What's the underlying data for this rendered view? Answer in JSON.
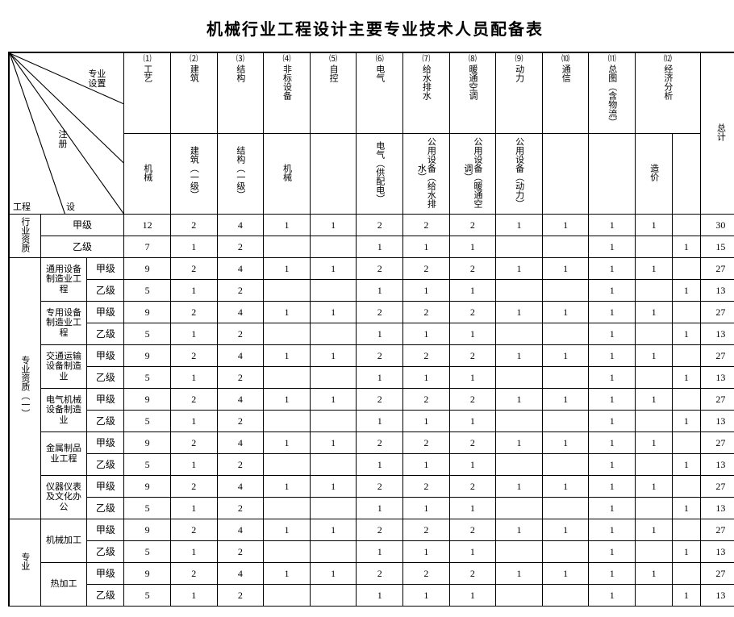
{
  "title": "机械行业工程设计主要专业技术人员配备表",
  "diag": {
    "zhuanye_shezhi": "专业\n设置",
    "zhuce": "注\n册",
    "gongcheng": "工程",
    "she": "设"
  },
  "cols": [
    {
      "num": "⑴",
      "name": "工艺",
      "sub": "机械"
    },
    {
      "num": "⑵",
      "name": "建筑",
      "sub": "建筑（一级）"
    },
    {
      "num": "⑶",
      "name": "结构",
      "sub": "结构（一级）"
    },
    {
      "num": "⑷",
      "name": "非标设备",
      "sub": "机械"
    },
    {
      "num": "⑸",
      "name": "自控",
      "sub": ""
    },
    {
      "num": "⑹",
      "name": "电气",
      "sub": "电气（供配电）"
    },
    {
      "num": "⑺",
      "name": "给水排水",
      "sub": "公用设备（给水排水）"
    },
    {
      "num": "⑻",
      "name": "暖通空调",
      "sub": "公用设备（暖通空调）"
    },
    {
      "num": "⑼",
      "name": "动力",
      "sub": "公用设备（动力）"
    },
    {
      "num": "⑽",
      "name": "通信",
      "sub": ""
    },
    {
      "num": "⑾",
      "name": "总图（含物流）",
      "sub": ""
    },
    {
      "num": "⑿",
      "name": "经济分析",
      "sub": "造价",
      "colspan": 2
    }
  ],
  "total_label": "总计",
  "groups": [
    {
      "name": "行业资质",
      "rows": [
        {
          "cat": "",
          "catspan": 2,
          "lvl": "甲级",
          "v": [
            "12",
            "2",
            "4",
            "1",
            "1",
            "2",
            "2",
            "2",
            "1",
            "1",
            "1",
            "1",
            ""
          ],
          "t": "30"
        },
        {
          "cat": "",
          "lvl": "乙级",
          "v": [
            "7",
            "1",
            "2",
            "",
            "",
            "1",
            "1",
            "1",
            "",
            "",
            "1",
            "",
            "1"
          ],
          "t": "15"
        }
      ]
    },
    {
      "name": "专业资质（一）",
      "rows": [
        {
          "cat": "通用设备制造业工程",
          "lvl": "甲级",
          "v": [
            "9",
            "2",
            "4",
            "1",
            "1",
            "2",
            "2",
            "2",
            "1",
            "1",
            "1",
            "1",
            ""
          ],
          "t": "27"
        },
        {
          "cat": "",
          "lvl": "乙级",
          "v": [
            "5",
            "1",
            "2",
            "",
            "",
            "1",
            "1",
            "1",
            "",
            "",
            "1",
            "",
            "1"
          ],
          "t": "13"
        },
        {
          "cat": "专用设备制造业工程",
          "lvl": "甲级",
          "v": [
            "9",
            "2",
            "4",
            "1",
            "1",
            "2",
            "2",
            "2",
            "1",
            "1",
            "1",
            "1",
            ""
          ],
          "t": "27"
        },
        {
          "cat": "",
          "lvl": "乙级",
          "v": [
            "5",
            "1",
            "2",
            "",
            "",
            "1",
            "1",
            "1",
            "",
            "",
            "1",
            "",
            "1"
          ],
          "t": "13"
        },
        {
          "cat": "交通运输设备制造业",
          "lvl": "甲级",
          "v": [
            "9",
            "2",
            "4",
            "1",
            "1",
            "2",
            "2",
            "2",
            "1",
            "1",
            "1",
            "1",
            ""
          ],
          "t": "27"
        },
        {
          "cat": "",
          "lvl": "乙级",
          "v": [
            "5",
            "1",
            "2",
            "",
            "",
            "1",
            "1",
            "1",
            "",
            "",
            "1",
            "",
            "1"
          ],
          "t": "13"
        },
        {
          "cat": "电气机械设备制造业",
          "lvl": "甲级",
          "v": [
            "9",
            "2",
            "4",
            "1",
            "1",
            "2",
            "2",
            "2",
            "1",
            "1",
            "1",
            "1",
            ""
          ],
          "t": "27"
        },
        {
          "cat": "",
          "lvl": "乙级",
          "v": [
            "5",
            "1",
            "2",
            "",
            "",
            "1",
            "1",
            "1",
            "",
            "",
            "1",
            "",
            "1"
          ],
          "t": "13"
        },
        {
          "cat": "金属制品业工程",
          "lvl": "甲级",
          "v": [
            "9",
            "2",
            "4",
            "1",
            "1",
            "2",
            "2",
            "2",
            "1",
            "1",
            "1",
            "1",
            ""
          ],
          "t": "27"
        },
        {
          "cat": "",
          "lvl": "乙级",
          "v": [
            "5",
            "1",
            "2",
            "",
            "",
            "1",
            "1",
            "1",
            "",
            "",
            "1",
            "",
            "1"
          ],
          "t": "13"
        },
        {
          "cat": "仪器仪表及文化办公",
          "lvl": "甲级",
          "v": [
            "9",
            "2",
            "4",
            "1",
            "1",
            "2",
            "2",
            "2",
            "1",
            "1",
            "1",
            "1",
            ""
          ],
          "t": "27"
        },
        {
          "cat": "",
          "lvl": "乙级",
          "v": [
            "5",
            "1",
            "2",
            "",
            "",
            "1",
            "1",
            "1",
            "",
            "",
            "1",
            "",
            "1"
          ],
          "t": "13"
        }
      ]
    },
    {
      "name": "专业",
      "rows": [
        {
          "cat": "机械加工",
          "lvl": "甲级",
          "v": [
            "9",
            "2",
            "4",
            "1",
            "1",
            "2",
            "2",
            "2",
            "1",
            "1",
            "1",
            "1",
            ""
          ],
          "t": "27"
        },
        {
          "cat": "",
          "lvl": "乙级",
          "v": [
            "5",
            "1",
            "2",
            "",
            "",
            "1",
            "1",
            "1",
            "",
            "",
            "1",
            "",
            "1"
          ],
          "t": "13"
        },
        {
          "cat": "热加工",
          "lvl": "甲级",
          "v": [
            "9",
            "2",
            "4",
            "1",
            "1",
            "2",
            "2",
            "2",
            "1",
            "1",
            "1",
            "1",
            ""
          ],
          "t": "27"
        },
        {
          "cat": "",
          "lvl": "乙级",
          "v": [
            "5",
            "1",
            "2",
            "",
            "",
            "1",
            "1",
            "1",
            "",
            "",
            "1",
            "",
            "1"
          ],
          "t": "13"
        }
      ]
    }
  ],
  "style": {
    "font_family": "SimSun",
    "title_fontsize": 20,
    "cell_fontsize": 12,
    "border_color": "#000000",
    "background": "#ffffff",
    "col_a_width": 34,
    "col_b_width": 50,
    "col_c_width": 40,
    "data_col_width": 50,
    "econ_sub_width": 30
  }
}
